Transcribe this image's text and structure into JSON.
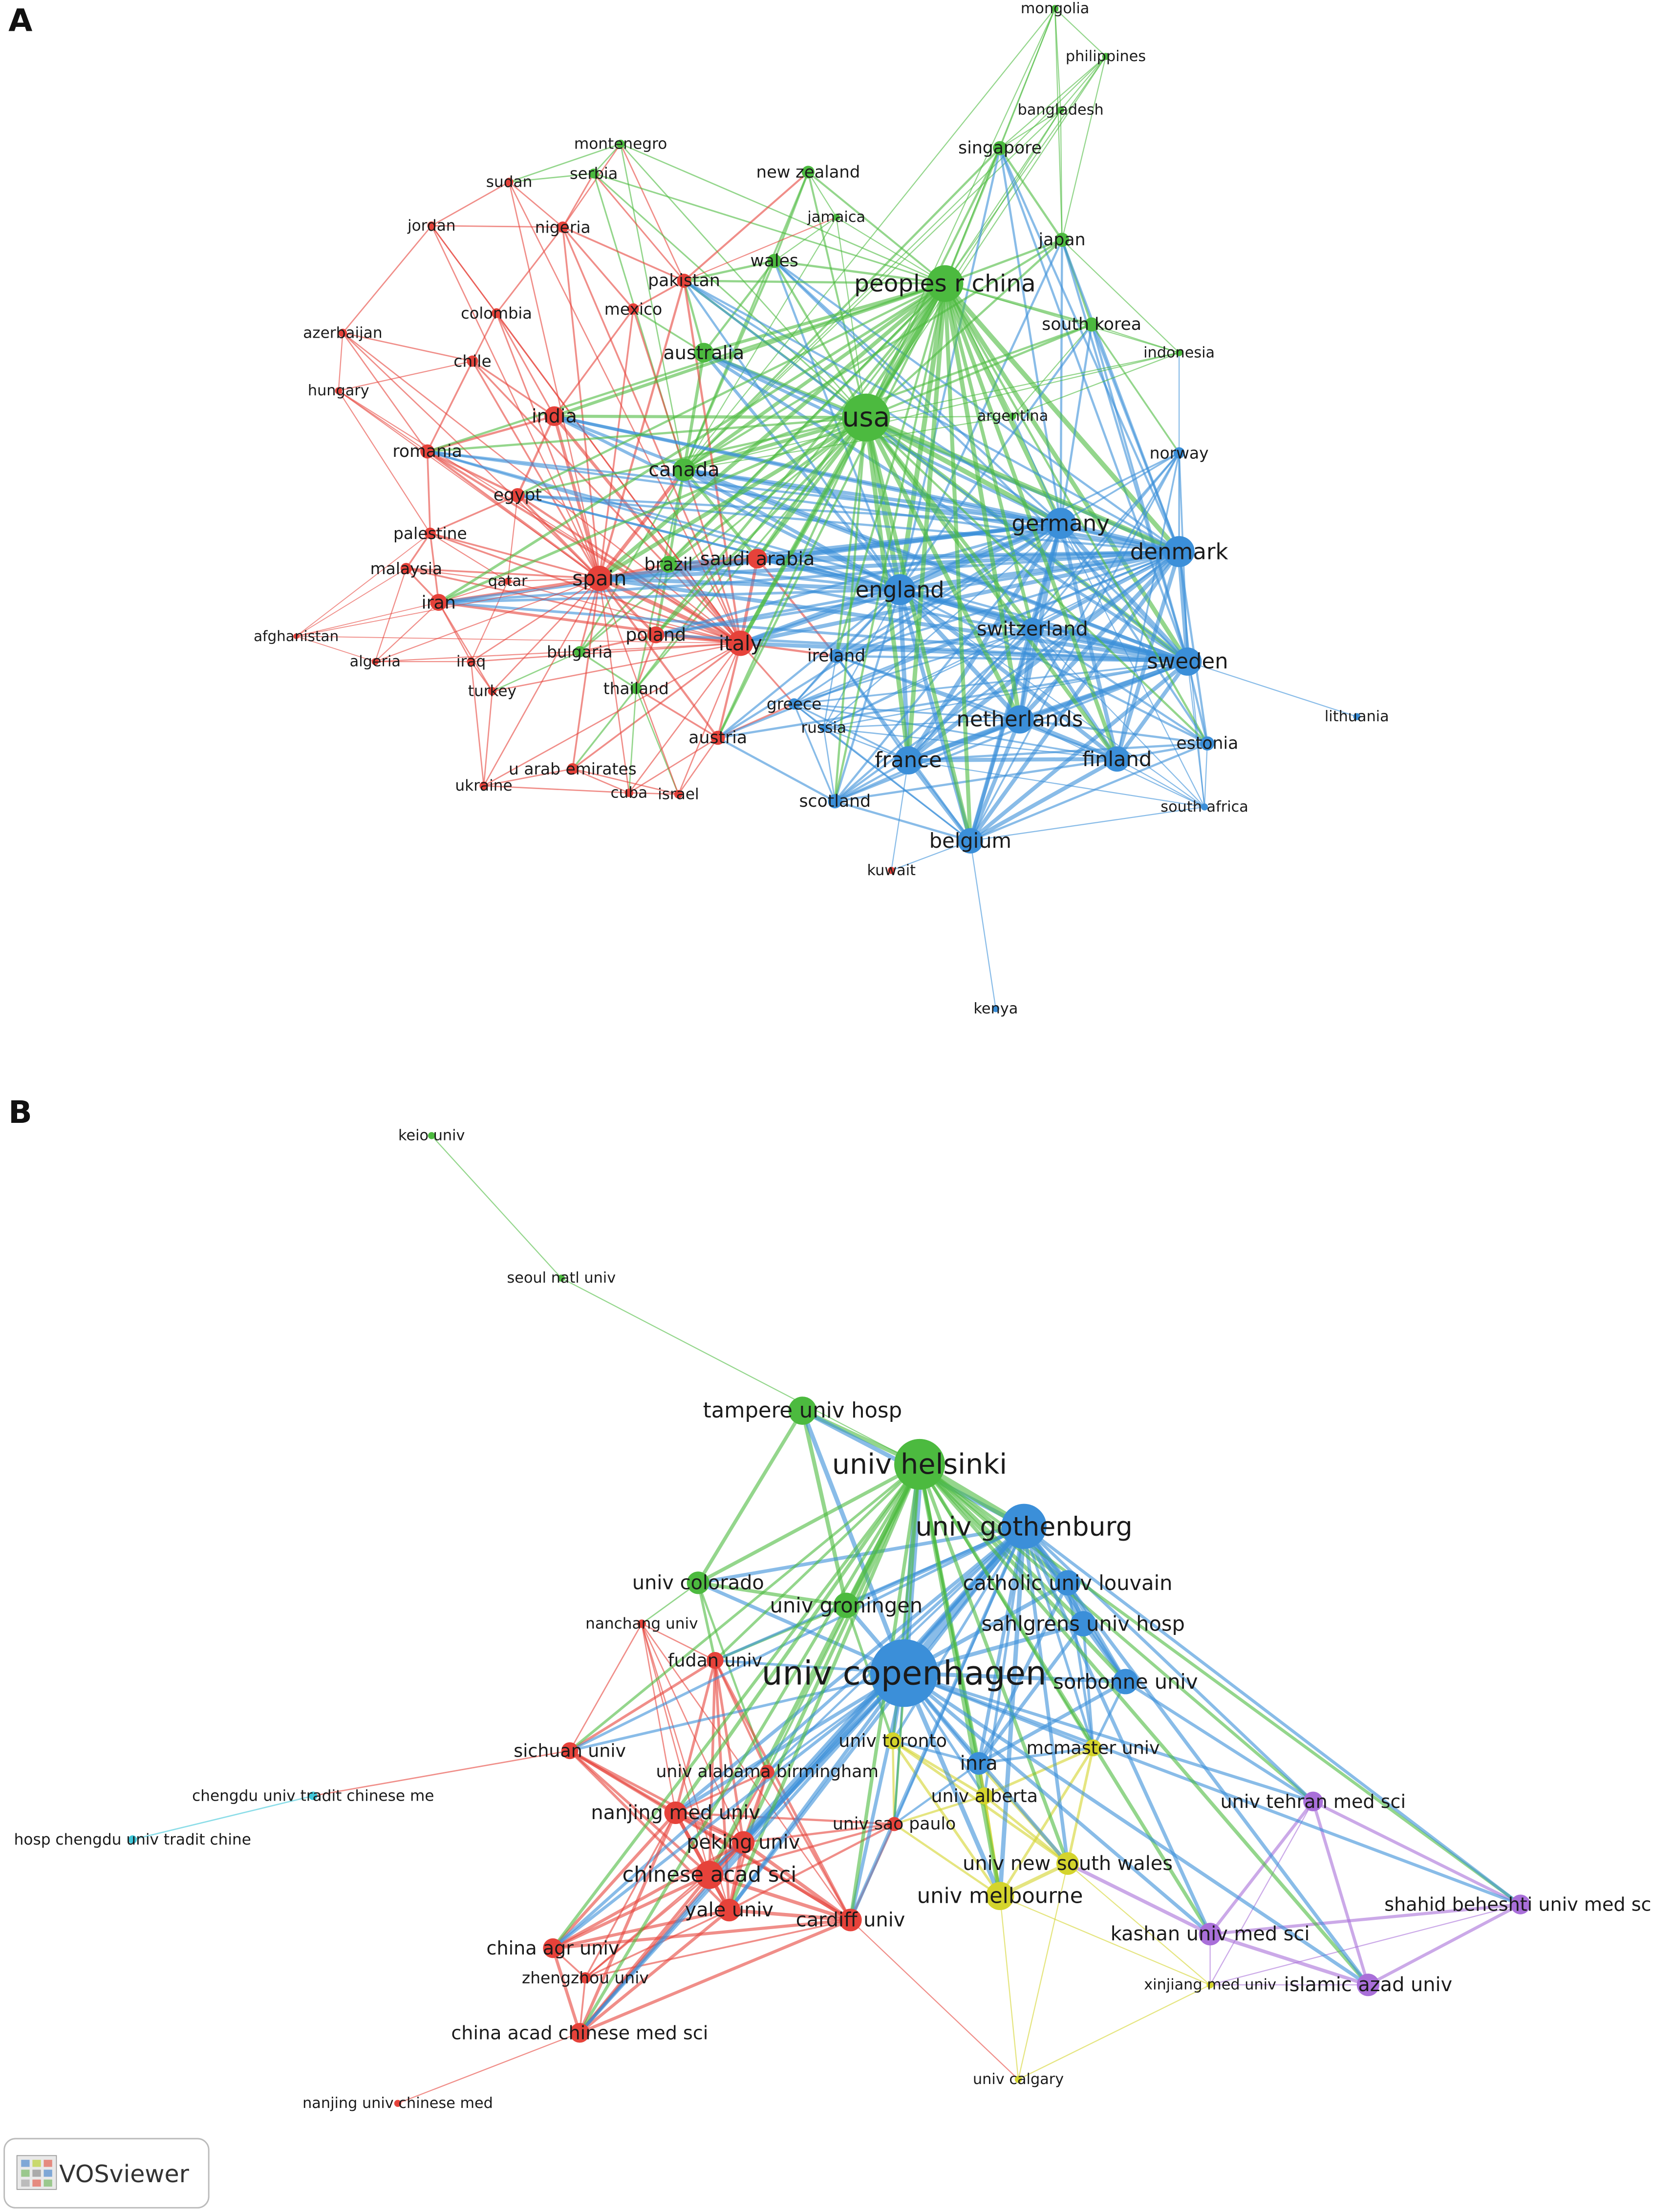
{
  "panel_a": {
    "label": "A",
    "nodes": [
      {
        "label": "mongolia",
        "color": "#4cba3f"
      },
      {
        "label": "philippines",
        "color": "#4cba3f"
      },
      {
        "label": "bangladesh",
        "color": "#4cba3f"
      },
      {
        "label": "singapore",
        "color": "#4cba3f"
      },
      {
        "label": "montenegro",
        "color": "#4cba3f"
      },
      {
        "label": "serbia",
        "color": "#4cba3f"
      },
      {
        "label": "new zealand",
        "color": "#4cba3f"
      },
      {
        "label": "jamaica",
        "color": "#4cba3f"
      },
      {
        "label": "japan",
        "color": "#4cba3f"
      },
      {
        "label": "wales",
        "color": "#4cba3f"
      },
      {
        "label": "peoples r china",
        "color": "#4cba3f"
      },
      {
        "label": "south korea",
        "color": "#4cba3f"
      },
      {
        "label": "indonesia",
        "color": "#4cba3f"
      },
      {
        "label": "australia",
        "color": "#4cba3f"
      },
      {
        "label": "usa",
        "color": "#4cba3f"
      },
      {
        "label": "argentina",
        "color": "#4cba3f"
      },
      {
        "label": "canada",
        "color": "#4cba3f"
      },
      {
        "label": "brazil",
        "color": "#4cba3f"
      },
      {
        "label": "bulgaria",
        "color": "#4cba3f"
      },
      {
        "label": "thailand",
        "color": "#4cba3f"
      },
      {
        "label": "mexico",
        "color": "#e6423a"
      },
      {
        "label": "sudan",
        "color": "#e6423a"
      },
      {
        "label": "jordan",
        "color": "#e6423a"
      },
      {
        "label": "nigeria",
        "color": "#e6423a"
      },
      {
        "label": "pakistan",
        "color": "#e6423a"
      },
      {
        "label": "colombia",
        "color": "#e6423a"
      },
      {
        "label": "azerbaijan",
        "color": "#e6423a"
      },
      {
        "label": "chile",
        "color": "#e6423a"
      },
      {
        "label": "hungary",
        "color": "#e6423a"
      },
      {
        "label": "india",
        "color": "#e6423a"
      },
      {
        "label": "romania",
        "color": "#e6423a"
      },
      {
        "label": "egypt",
        "color": "#e6423a"
      },
      {
        "label": "palestine",
        "color": "#e6423a"
      },
      {
        "label": "saudi arabia",
        "color": "#e6423a"
      },
      {
        "label": "malaysia",
        "color": "#e6423a"
      },
      {
        "label": "qatar",
        "color": "#e6423a"
      },
      {
        "label": "spain",
        "color": "#e6423a"
      },
      {
        "label": "iran",
        "color": "#e6423a"
      },
      {
        "label": "afghanistan",
        "color": "#e6423a"
      },
      {
        "label": "poland",
        "color": "#e6423a"
      },
      {
        "label": "italy",
        "color": "#e6423a"
      },
      {
        "label": "algeria",
        "color": "#e6423a"
      },
      {
        "label": "iraq",
        "color": "#e6423a"
      },
      {
        "label": "turkey",
        "color": "#e6423a"
      },
      {
        "label": "austria",
        "color": "#e6423a"
      },
      {
        "label": "u arab emirates",
        "color": "#e6423a"
      },
      {
        "label": "ukraine",
        "color": "#e6423a"
      },
      {
        "label": "cuba",
        "color": "#e6423a"
      },
      {
        "label": "israel",
        "color": "#e6423a"
      },
      {
        "label": "kuwait",
        "color": "#e6423a"
      },
      {
        "label": "norway",
        "color": "#3b8fd9"
      },
      {
        "label": "germany",
        "color": "#3b8fd9"
      },
      {
        "label": "denmark",
        "color": "#3b8fd9"
      },
      {
        "label": "england",
        "color": "#3b8fd9"
      },
      {
        "label": "switzerland",
        "color": "#3b8fd9"
      },
      {
        "label": "ireland",
        "color": "#3b8fd9"
      },
      {
        "label": "sweden",
        "color": "#3b8fd9"
      },
      {
        "label": "greece",
        "color": "#3b8fd9"
      },
      {
        "label": "russia",
        "color": "#3b8fd9"
      },
      {
        "label": "lithuania",
        "color": "#3b8fd9"
      },
      {
        "label": "netherlands",
        "color": "#3b8fd9"
      },
      {
        "label": "estonia",
        "color": "#3b8fd9"
      },
      {
        "label": "france",
        "color": "#3b8fd9"
      },
      {
        "label": "finland",
        "color": "#3b8fd9"
      },
      {
        "label": "scotland",
        "color": "#3b8fd9"
      },
      {
        "label": "south africa",
        "color": "#3b8fd9"
      },
      {
        "label": "belgium",
        "color": "#3b8fd9"
      },
      {
        "label": "kenya",
        "color": "#3b8fd9"
      }
    ]
  },
  "panel_b": {
    "label": "B",
    "nodes": [
      {
        "label": "keio univ",
        "color": "#4cba3f"
      },
      {
        "label": "seoul natl univ",
        "color": "#4cba3f"
      },
      {
        "label": "tampere univ hosp",
        "color": "#4cba3f"
      },
      {
        "label": "univ helsinki",
        "color": "#4cba3f"
      },
      {
        "label": "univ colorado",
        "color": "#4cba3f"
      },
      {
        "label": "univ groningen",
        "color": "#4cba3f"
      },
      {
        "label": "nanchang univ",
        "color": "#e6423a"
      },
      {
        "label": "fudan univ",
        "color": "#e6423a"
      },
      {
        "label": "univ gothenburg",
        "color": "#3b8fd9"
      },
      {
        "label": "catholic univ louvain",
        "color": "#3b8fd9"
      },
      {
        "label": "sahlgrens univ hosp",
        "color": "#3b8fd9"
      },
      {
        "label": "univ copenhagen",
        "color": "#3b8fd9"
      },
      {
        "label": "sorbonne univ",
        "color": "#3b8fd9"
      },
      {
        "label": "inra",
        "color": "#3b8fd9"
      },
      {
        "label": "mcmaster univ",
        "color": "#d4d42c"
      },
      {
        "label": "sichuan univ",
        "color": "#e6423a"
      },
      {
        "label": "univ toronto",
        "color": "#d4d42c"
      },
      {
        "label": "univ alabama birmingham",
        "color": "#e6423a"
      },
      {
        "label": "nanjing med univ",
        "color": "#e6423a"
      },
      {
        "label": "univ alberta",
        "color": "#d4d42c"
      },
      {
        "label": "univ sao paulo",
        "color": "#e6423a"
      },
      {
        "label": "peking univ",
        "color": "#e6423a"
      },
      {
        "label": "chinese acad sci",
        "color": "#e6423a"
      },
      {
        "label": "yale univ",
        "color": "#e6423a"
      },
      {
        "label": "cardiff univ",
        "color": "#e6423a"
      },
      {
        "label": "china agr univ",
        "color": "#e6423a"
      },
      {
        "label": "zhengzhou univ",
        "color": "#e6423a"
      },
      {
        "label": "china acad chinese med sci",
        "color": "#e6423a"
      },
      {
        "label": "nanjing univ chinese med",
        "color": "#e6423a"
      },
      {
        "label": "univ new south wales",
        "color": "#d4d42c"
      },
      {
        "label": "univ melbourne",
        "color": "#d4d42c"
      },
      {
        "label": "xinjiang med univ",
        "color": "#d4d42c"
      },
      {
        "label": "univ calgary",
        "color": "#d4d42c"
      },
      {
        "label": "univ tehran med sci",
        "color": "#a96fd9"
      },
      {
        "label": "shahid beheshti univ med sci",
        "color": "#a96fd9"
      },
      {
        "label": "kashan univ med sci",
        "color": "#a96fd9"
      },
      {
        "label": "islamic azad univ",
        "color": "#a96fd9"
      },
      {
        "label": "chengdu univ tradit chinese me",
        "color": "#3fc7d9"
      },
      {
        "label": "hosp chengdu univ tradit chine",
        "color": "#3fc7d9"
      }
    ]
  },
  "logo": "VOSviewer"
}
